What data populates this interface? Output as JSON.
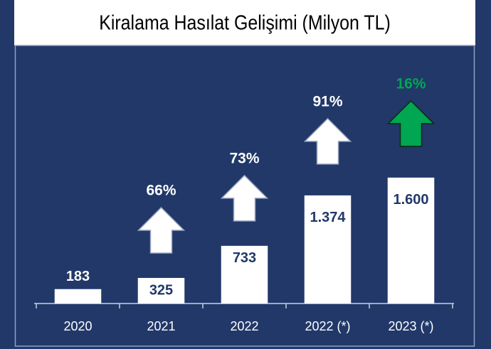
{
  "chart_data": {
    "type": "bar",
    "title": "Kiralama Hasılat Gelişimi (Milyon TL)",
    "categories": [
      "2020",
      "2021",
      "2022",
      "2022 (*)",
      "2023 (*)"
    ],
    "values": [
      183,
      325,
      733,
      1374,
      1600
    ],
    "value_labels": [
      "183",
      "325",
      "733",
      "1.374",
      "1.600"
    ],
    "color": "#ffffff",
    "ylim": [
      0,
      3270
    ],
    "growth_labels": [
      null,
      "66%",
      "73%",
      "91%",
      "16%"
    ],
    "growth_colors": [
      null,
      "#ffffff",
      "#ffffff",
      "#ffffff",
      "#00a651"
    ]
  }
}
